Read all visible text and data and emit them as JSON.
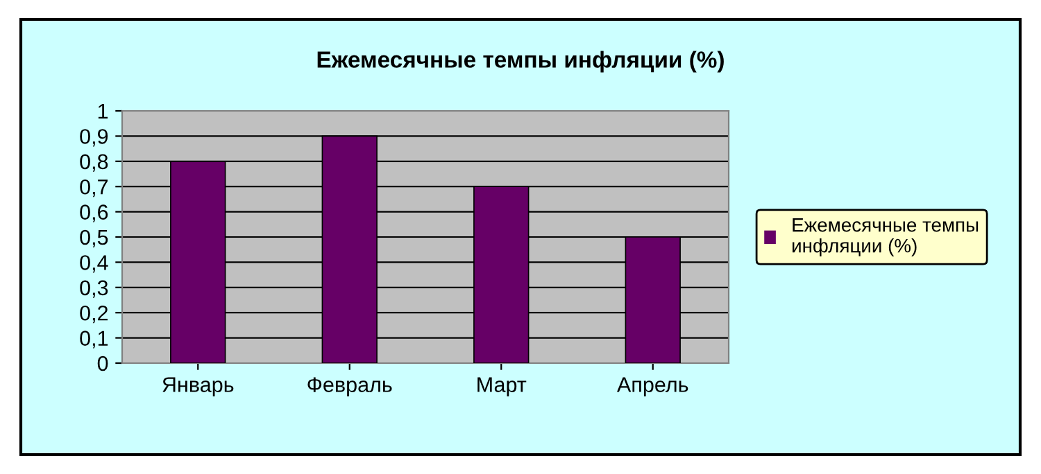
{
  "chart_data": {
    "type": "bar",
    "title": "Ежемесячные темпы инфляции (%)",
    "categories": [
      "Январь",
      "Февраль",
      "Март",
      "Апрель"
    ],
    "series": [
      {
        "name": "Ежемесячные темпы инфляции (%)",
        "color": "#660066",
        "values": [
          0.8,
          0.9,
          0.7,
          0.5
        ]
      }
    ],
    "ylim": [
      0,
      1
    ],
    "yticks": [
      0,
      {
        "value": 0.1,
        "label": "0,1"
      },
      {
        "value": 0.2,
        "label": "0,2"
      },
      {
        "value": 0.3,
        "label": "0,3"
      },
      {
        "value": 0.4,
        "label": "0,4"
      },
      {
        "value": 0.5,
        "label": "0,5"
      },
      {
        "value": 0.6,
        "label": "0,6"
      },
      {
        "value": 0.7,
        "label": "0,7"
      },
      {
        "value": 0.8,
        "label": "0,8"
      },
      {
        "value": 0.9,
        "label": "0,9"
      },
      1
    ],
    "grid": "y",
    "legend": "right"
  }
}
